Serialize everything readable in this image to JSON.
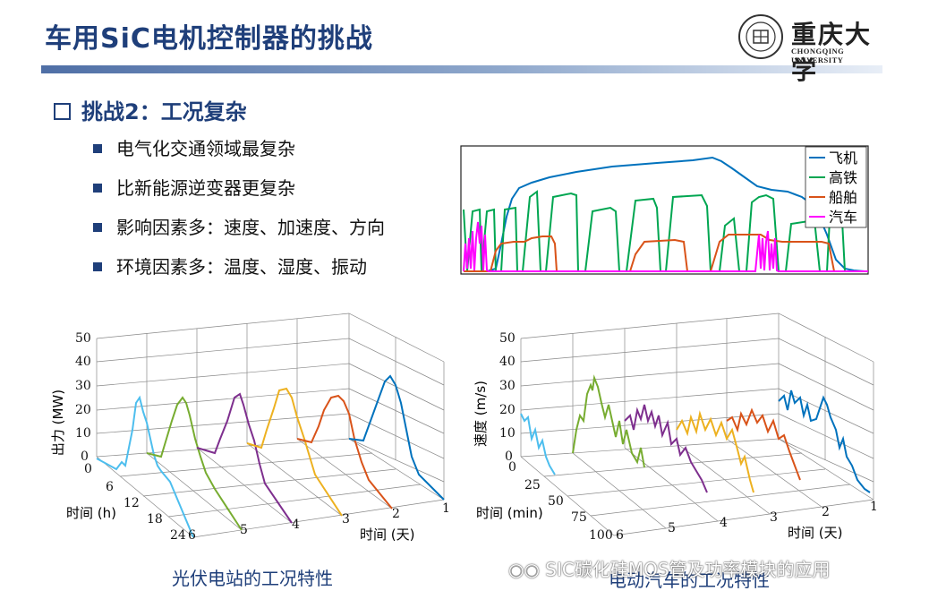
{
  "slide": {
    "title": "车用SiC电机控制器的挑战",
    "logo_cn": "重庆大学",
    "logo_en": "CHONGQING UNIVERSITY",
    "heading": "挑战2：工况复杂",
    "bullets": [
      "电气化交通领域最复杂",
      "比新能源逆变器更复杂",
      "影响因素多：速度、加速度、方向",
      "环境因素多：温度、湿度、振动"
    ],
    "caption_left": "光伏电站的工况特性",
    "caption_right": "电动汽车的工况特性",
    "watermark": "SIC碳化硅MOS管及功率模块的应用"
  },
  "colors": {
    "accent": "#1f3f7a",
    "blue": "#0072bd",
    "green": "#00a651",
    "orange": "#d95319",
    "magenta": "#ff00ff",
    "light_blue": "#4dbeee",
    "olive": "#77ac30",
    "purple": "#7e2f8e",
    "yellow": "#edb120"
  },
  "chart_data": [
    {
      "type": "line",
      "legend": [
        "飞机",
        "高铁",
        "船舶",
        "汽车"
      ],
      "legend_position": "top-right",
      "axes_labels": "none"
    },
    {
      "type": "line-3d",
      "zlabel": "出力 (MW)",
      "zticks": [
        "0",
        "10",
        "20",
        "30",
        "40",
        "50"
      ],
      "ylabel": "时间 (h)",
      "yticks": [
        "0",
        "6",
        "12",
        "18",
        "24"
      ],
      "xlabel": "时间 (天)",
      "xticks": [
        "6",
        "5",
        "4",
        "3",
        "2",
        "1"
      ],
      "series_peaks": [
        {
          "day": 6,
          "peak": 22
        },
        {
          "day": 5,
          "peak": 24
        },
        {
          "day": 4,
          "peak": 25
        },
        {
          "day": 3,
          "peak": 28
        },
        {
          "day": 2,
          "peak": 26
        },
        {
          "day": 1,
          "peak": 34
        }
      ]
    },
    {
      "type": "line-3d",
      "zlabel": "速度 (m/s)",
      "zticks": [
        "0",
        "10",
        "20",
        "30",
        "40",
        "50"
      ],
      "ylabel": "时间 (min)",
      "yticks": [
        "0",
        "25",
        "50",
        "75",
        "100"
      ],
      "xlabel": "时间 (天)",
      "xticks": [
        "6",
        "5",
        "4",
        "3",
        "2",
        "1"
      ]
    }
  ]
}
